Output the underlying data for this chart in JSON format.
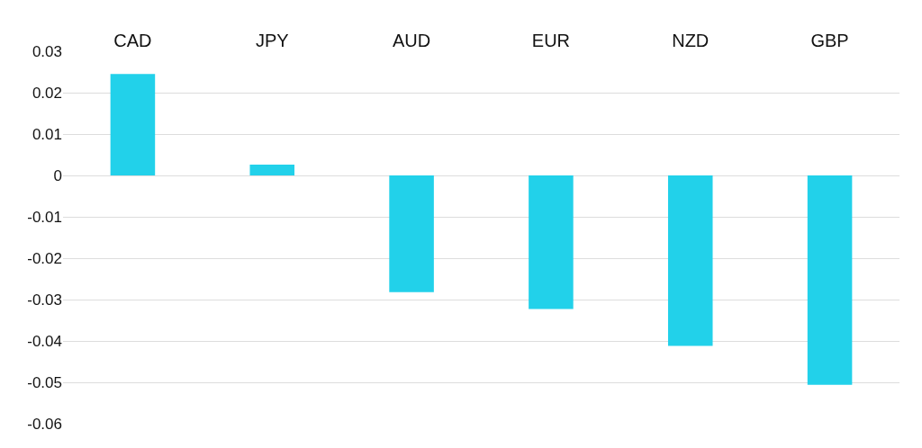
{
  "chart_data": {
    "type": "bar",
    "categories": [
      "CAD",
      "JPY",
      "AUD",
      "EUR",
      "NZD",
      "GBP"
    ],
    "values": [
      0.0245,
      0.0026,
      -0.0282,
      -0.0323,
      -0.0412,
      -0.0506
    ],
    "color": "#22d1ea",
    "ylim": [
      -0.06,
      0.03
    ],
    "yticks": [
      0.03,
      0.02,
      0.01,
      0,
      -0.01,
      -0.02,
      -0.03,
      -0.04,
      -0.05,
      -0.06
    ],
    "grid": "y"
  }
}
